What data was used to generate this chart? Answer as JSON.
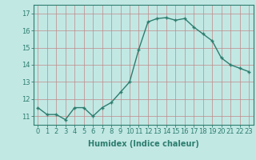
{
  "x": [
    0,
    1,
    2,
    3,
    4,
    5,
    6,
    7,
    8,
    9,
    10,
    11,
    12,
    13,
    14,
    15,
    16,
    17,
    18,
    19,
    20,
    21,
    22,
    23
  ],
  "y": [
    11.5,
    11.1,
    11.1,
    10.8,
    11.5,
    11.5,
    11.0,
    11.5,
    11.8,
    12.4,
    13.0,
    14.9,
    16.5,
    16.7,
    16.75,
    16.6,
    16.7,
    16.2,
    15.8,
    15.4,
    14.4,
    14.0,
    13.8,
    13.6
  ],
  "line_color": "#2d7d6e",
  "marker": "+",
  "marker_size": 3,
  "bg_color": "#c2e8e4",
  "grid_color": "#b0d0cc",
  "xlabel": "Humidex (Indice chaleur)",
  "xlim": [
    -0.5,
    23.5
  ],
  "ylim": [
    10.5,
    17.5
  ],
  "yticks": [
    11,
    12,
    13,
    14,
    15,
    16,
    17
  ],
  "xticks": [
    0,
    1,
    2,
    3,
    4,
    5,
    6,
    7,
    8,
    9,
    10,
    11,
    12,
    13,
    14,
    15,
    16,
    17,
    18,
    19,
    20,
    21,
    22,
    23
  ],
  "tick_label_fontsize": 6,
  "xlabel_fontsize": 7,
  "line_width": 1.0
}
